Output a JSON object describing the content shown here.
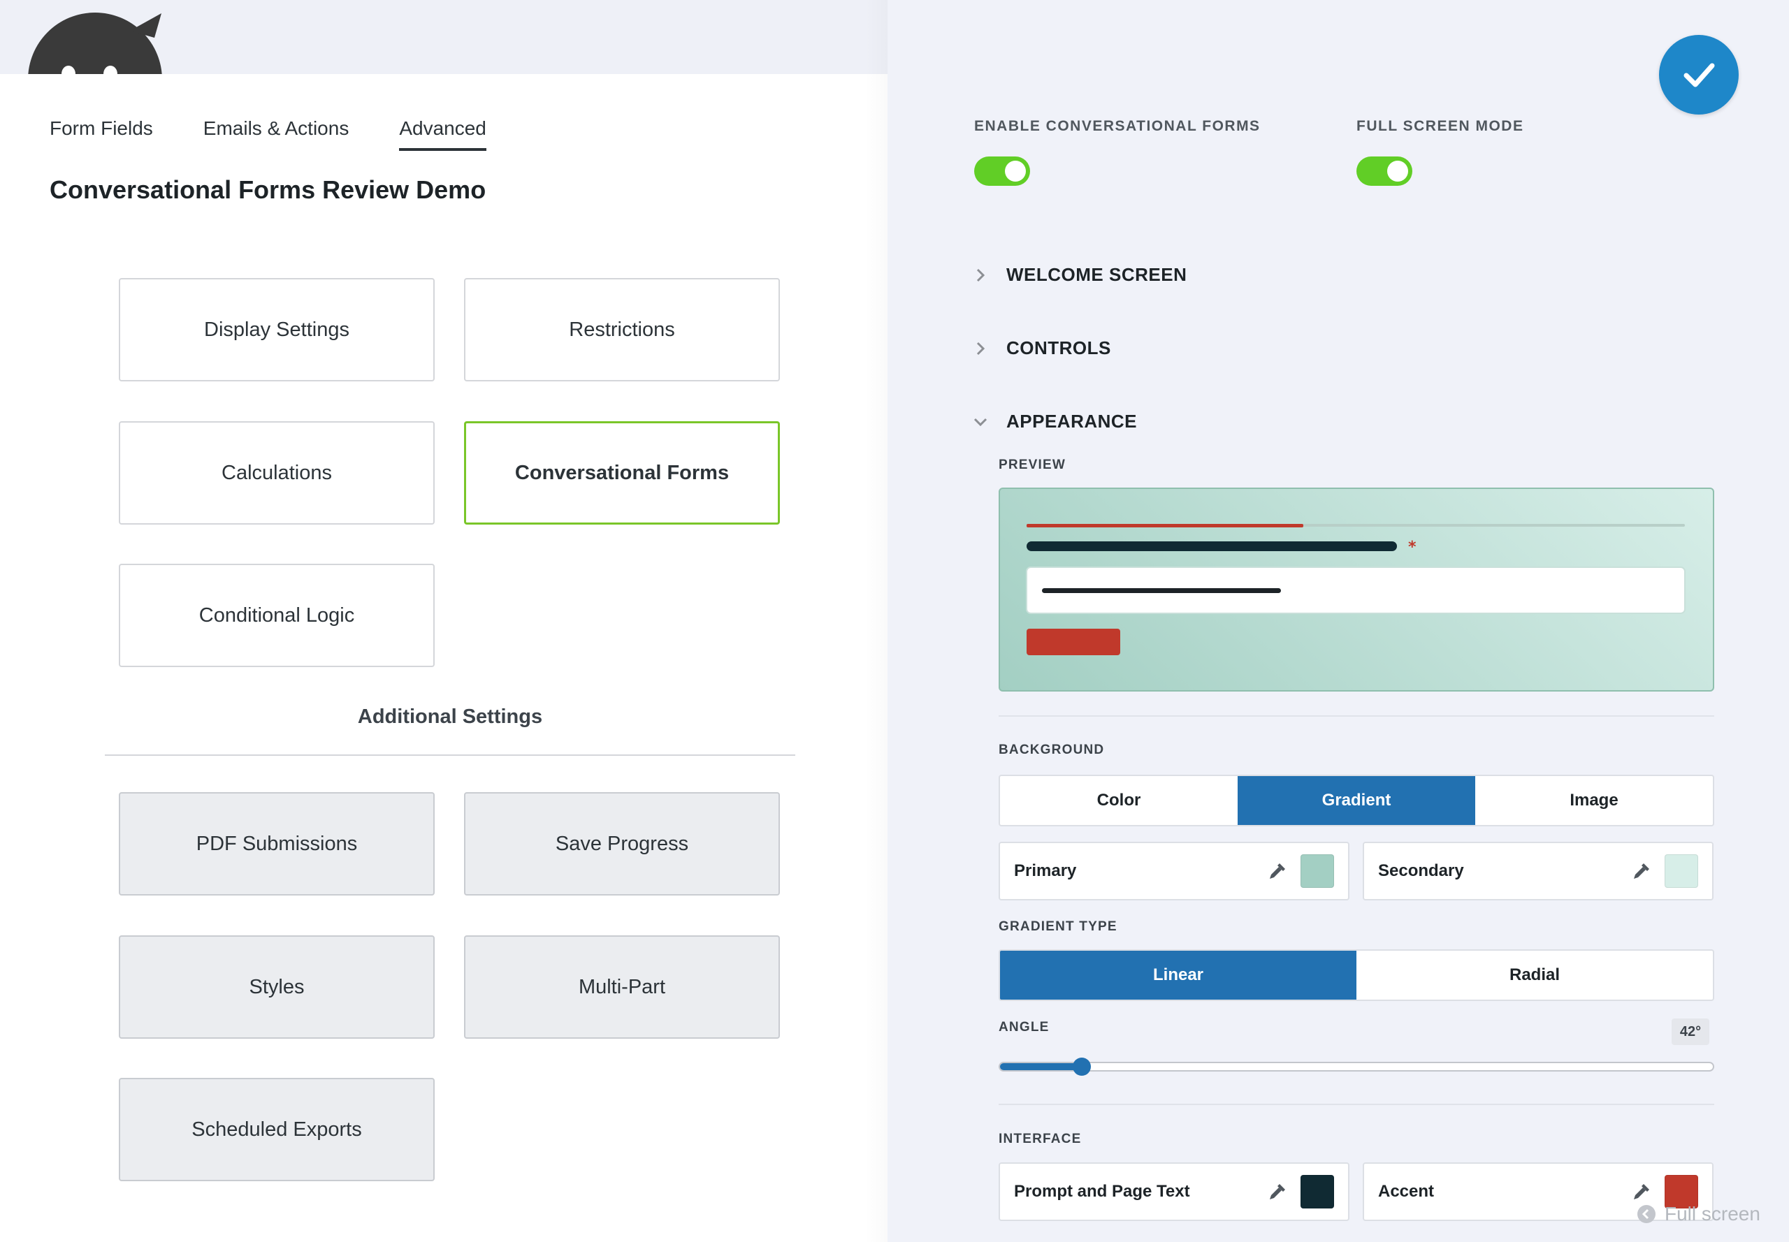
{
  "tabs": [
    {
      "label": "Form Fields",
      "active": false
    },
    {
      "label": "Emails & Actions",
      "active": false
    },
    {
      "label": "Advanced",
      "active": true
    }
  ],
  "page_title": "Conversational Forms Review Demo",
  "settings_cards": [
    {
      "label": "Display Settings"
    },
    {
      "label": "Restrictions"
    },
    {
      "label": "Calculations"
    },
    {
      "label": "Conversational Forms",
      "selected": true
    },
    {
      "label": "Conditional Logic"
    }
  ],
  "additional_settings": {
    "heading": "Additional Settings",
    "cards": [
      {
        "label": "PDF Submissions"
      },
      {
        "label": "Save Progress"
      },
      {
        "label": "Styles"
      },
      {
        "label": "Multi-Part"
      },
      {
        "label": "Scheduled Exports"
      }
    ]
  },
  "drawer": {
    "toggles": [
      {
        "label": "ENABLE CONVERSATIONAL FORMS",
        "on": true
      },
      {
        "label": "FULL SCREEN MODE",
        "on": true
      }
    ],
    "sections": {
      "welcome": "WELCOME SCREEN",
      "controls": "CONTROLS",
      "appearance": "APPEARANCE"
    },
    "preview_label": "PREVIEW",
    "background": {
      "label": "BACKGROUND",
      "options": [
        "Color",
        "Gradient",
        "Image"
      ],
      "selected": "Gradient",
      "primary": {
        "label": "Primary",
        "color": "#a3cfc3"
      },
      "secondary": {
        "label": "Secondary",
        "color": "#d7eee8"
      }
    },
    "gradient_type": {
      "label": "GRADIENT TYPE",
      "options": [
        "Linear",
        "Radial"
      ],
      "selected": "Linear"
    },
    "angle": {
      "label": "ANGLE",
      "value_text": "42°",
      "value": 42,
      "max": 360
    },
    "interface": {
      "label": "INTERFACE",
      "prompt_text": {
        "label": "Prompt and Page Text",
        "color": "#102a33"
      },
      "accent": {
        "label": "Accent",
        "color": "#c0392b"
      }
    },
    "fullscreen_hint": "Full screen"
  },
  "colors": {
    "toggle_on": "#61ce26",
    "selected_border": "#7ac629",
    "primary_blue": "#2271b1",
    "check_button": "#1e87c9"
  }
}
